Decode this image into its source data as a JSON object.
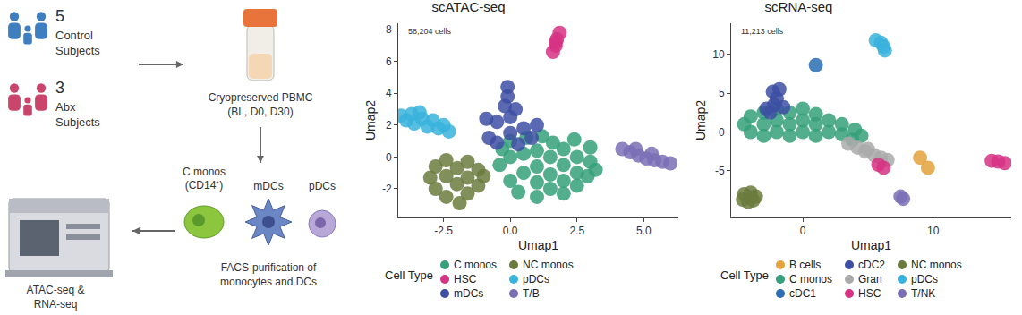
{
  "diagram": {
    "groups": [
      {
        "count": "5",
        "lines": [
          "Control",
          "Subjects"
        ]
      },
      {
        "count": "3",
        "lines": [
          "Abx",
          "Subjects"
        ]
      }
    ],
    "sample": {
      "lines": [
        "Cryopreserved PBMC",
        "(BL, D0, D30)"
      ]
    },
    "cells": [
      {
        "lines": [
          "C monos",
          "(CD14⁺)"
        ]
      },
      {
        "lines": [
          "mDCs"
        ]
      },
      {
        "lines": [
          "pDCs"
        ]
      }
    ],
    "sorting": {
      "lines": [
        "FACS-purification of",
        "monocytes and DCs"
      ]
    },
    "assay": {
      "lines": [
        "ATAC-seq &",
        "RNA-seq"
      ]
    }
  },
  "chart_data": [
    {
      "type": "scatter",
      "title": "scATAC-seq",
      "annotation": "58,204 cells",
      "xlabel": "Umap1",
      "ylabel": "Umap2",
      "legend_title": "Cell Type",
      "xlim": [
        -4.2,
        6.3
      ],
      "ylim": [
        -3.8,
        8.4
      ],
      "xticks": [
        {
          "value": -2.5,
          "label": "-2.5"
        },
        {
          "value": 0,
          "label": "0.0"
        },
        {
          "value": 2.5,
          "label": "2.5"
        },
        {
          "value": 5,
          "label": "5.0"
        }
      ],
      "yticks": [
        -2,
        0,
        2,
        4,
        6,
        8
      ],
      "series": [
        {
          "name": "C monos",
          "color": "#35a07a",
          "x": [
            -0.4,
            -0.3,
            0,
            0,
            0,
            0.3,
            0.5,
            0.5,
            0.6,
            1,
            1,
            1,
            1,
            1.2,
            1.5,
            1.5,
            1.5,
            1.6,
            2,
            2,
            2,
            2,
            2.4,
            2.5,
            2.5,
            2.5,
            2.9,
            3,
            3,
            3.2
          ],
          "y": [
            -0.5,
            0.5,
            -1.5,
            0,
            1,
            -2.2,
            -1,
            0.2,
            1.2,
            -2.5,
            -1.6,
            -0.6,
            0.4,
            1.3,
            -2,
            -1.1,
            0,
            0.9,
            -2.3,
            -1.5,
            -0.5,
            0.5,
            1.1,
            -1.8,
            -1,
            0,
            -1.2,
            -0.3,
            0.6,
            -0.8
          ]
        },
        {
          "name": "HSC",
          "color": "#d63384",
          "x": [
            1.6,
            1.7,
            1.75,
            1.85,
            1.7
          ],
          "y": [
            6.6,
            7,
            7.4,
            7.8,
            7.2
          ]
        },
        {
          "name": "mDCs",
          "color": "#3d4fa3",
          "x": [
            -0.8,
            -0.5,
            -0.5,
            0,
            0,
            0.3,
            0.5,
            0.8,
            -0.2,
            -0.1,
            -0.1,
            1,
            -0.9,
            0.2
          ],
          "y": [
            1.2,
            2.2,
            0.9,
            1.5,
            2.5,
            0.8,
            1.8,
            1.2,
            3.2,
            3.8,
            4.4,
            2,
            2.4,
            3
          ]
        },
        {
          "name": "NC monos",
          "color": "#6b7b3e",
          "x": [
            -3,
            -2.8,
            -2.8,
            -2.4,
            -2.4,
            -2.4,
            -2,
            -2,
            -1.9,
            -1.6,
            -1.6,
            -1.6,
            -1.2,
            -1.2,
            -1
          ],
          "y": [
            -1.3,
            -0.6,
            -2,
            -0.2,
            -1.2,
            -2.5,
            -0.7,
            -1.7,
            -2.9,
            -0.3,
            -1.3,
            -2.3,
            -0.8,
            -1.8,
            -1.2
          ]
        },
        {
          "name": "pDCs",
          "color": "#38b3dc",
          "x": [
            -4.1,
            -3.9,
            -3.7,
            -3.6,
            -3.3,
            -3.1,
            -2.9,
            -2.7,
            -2.5,
            -2.3,
            -3.4
          ],
          "y": [
            2.6,
            2.3,
            2.7,
            2.1,
            2.4,
            1.9,
            2.3,
            1.8,
            2,
            1.6,
            2.8
          ]
        },
        {
          "name": "T/B",
          "color": "#7a6fb5",
          "x": [
            4.2,
            4.5,
            4.8,
            5.1,
            5.4,
            5.7,
            6,
            4.7,
            5.3
          ],
          "y": [
            0.5,
            0.3,
            0.1,
            -0.1,
            -0.2,
            -0.3,
            -0.4,
            0.5,
            0.2
          ]
        }
      ]
    },
    {
      "type": "scatter",
      "title": "scRNA-seq",
      "annotation": "11,213 cells",
      "xlabel": "Umap1",
      "ylabel": "Umap2",
      "legend_title": "Cell Type",
      "xlim": [
        -5.5,
        16
      ],
      "ylim": [
        -11,
        14
      ],
      "xticks": [
        0,
        10
      ],
      "yticks": [
        -5,
        0,
        5,
        10
      ],
      "series": [
        {
          "name": "B cells",
          "color": "#e3a23b",
          "x": [
            9,
            9.6
          ],
          "y": [
            -3.3,
            -4.6
          ]
        },
        {
          "name": "C monos",
          "color": "#35a07a",
          "x": [
            -4.5,
            -4,
            -4,
            -3,
            -3,
            -3,
            -2,
            -2,
            -2,
            -1,
            -1,
            -1,
            0,
            0,
            0,
            1,
            1,
            1,
            2,
            2,
            3,
            3,
            4,
            4.5,
            3.8
          ],
          "y": [
            1,
            0,
            2,
            -0.5,
            1,
            2.5,
            0,
            1.5,
            3,
            -0.5,
            1,
            2.5,
            0,
            1.5,
            3,
            -0.5,
            1,
            2.3,
            0,
            1.5,
            -0.3,
            1,
            0.3,
            -0.5,
            -1
          ]
        },
        {
          "name": "cDC1",
          "color": "#2c6db4",
          "x": [
            1
          ],
          "y": [
            8.6
          ]
        },
        {
          "name": "cDC2",
          "color": "#3d4fa3",
          "x": [
            -2.5,
            -2.2,
            -2,
            -2.3,
            -1.8,
            -2.8,
            -1.5
          ],
          "y": [
            2.5,
            3.5,
            4.3,
            5.2,
            5.5,
            3,
            3.2
          ]
        },
        {
          "name": "Gran",
          "color": "#aaaaaa",
          "x": [
            3.5,
            4.2,
            4.8,
            5.5,
            6,
            6.5,
            5
          ],
          "y": [
            -1.5,
            -2,
            -2.5,
            -3,
            -3.3,
            -3.6,
            -2.2
          ]
        },
        {
          "name": "HSC",
          "color": "#d63384",
          "x": [
            5.8,
            6.2,
            14.5,
            15,
            15.5
          ],
          "y": [
            -4.2,
            -4.6,
            -3.7,
            -3.8,
            -4
          ]
        },
        {
          "name": "NC monos",
          "color": "#6b7b3e",
          "x": [
            -4.5,
            -4,
            -3.6,
            -4.2,
            -3.8,
            -4.6,
            -4
          ],
          "y": [
            -8,
            -7.8,
            -8.3,
            -9,
            -8.8,
            -8.7,
            -8.4
          ]
        },
        {
          "name": "pDCs",
          "color": "#38b3dc",
          "x": [
            5.6,
            6,
            6.2,
            6.3
          ],
          "y": [
            11.8,
            11.5,
            11,
            10.5
          ]
        },
        {
          "name": "T/NK",
          "color": "#7a6fb5",
          "x": [
            7.5,
            7.7
          ],
          "y": [
            -8.3,
            -8.6
          ]
        }
      ]
    }
  ]
}
